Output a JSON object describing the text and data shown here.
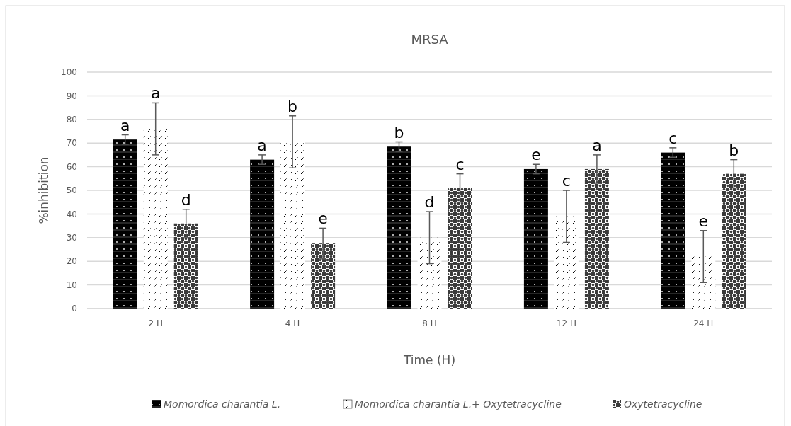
{
  "chart_data": {
    "type": "bar",
    "title": "MRSA",
    "xlabel": "Time (H)",
    "ylabel": "%inhibition",
    "categories": [
      "2 H",
      "4 H",
      "8 H",
      "12 H",
      "24 H"
    ],
    "series": [
      {
        "name": "Momordica charantia L.",
        "color": "#000000",
        "values": [
          71.5,
          63,
          68.5,
          59,
          66
        ],
        "errors": [
          2,
          2,
          2,
          2,
          2
        ],
        "value_labels": [
          "a",
          "a",
          "b",
          "e",
          "c"
        ]
      },
      {
        "name": "Momordica charantia L.+ Oxytetracycline",
        "color": "#ffffff",
        "values": [
          76,
          70.5,
          30,
          39,
          22
        ],
        "errors": [
          11,
          11,
          11,
          11,
          11
        ],
        "value_labels": [
          "a",
          "b",
          "d",
          "c",
          "e"
        ]
      },
      {
        "name": "Oxytetracycline",
        "color": "#3a3a3a",
        "values": [
          36,
          27.5,
          51,
          59,
          57
        ],
        "errors": [
          6,
          6.5,
          6,
          6,
          6
        ],
        "value_labels": [
          "d",
          "e",
          "c",
          "a",
          "b"
        ]
      }
    ],
    "ylim": [
      0,
      100
    ],
    "yticks": [
      0,
      10,
      20,
      30,
      40,
      50,
      60,
      70,
      80,
      90,
      100
    ],
    "grid": "y",
    "legend": "bottom"
  }
}
